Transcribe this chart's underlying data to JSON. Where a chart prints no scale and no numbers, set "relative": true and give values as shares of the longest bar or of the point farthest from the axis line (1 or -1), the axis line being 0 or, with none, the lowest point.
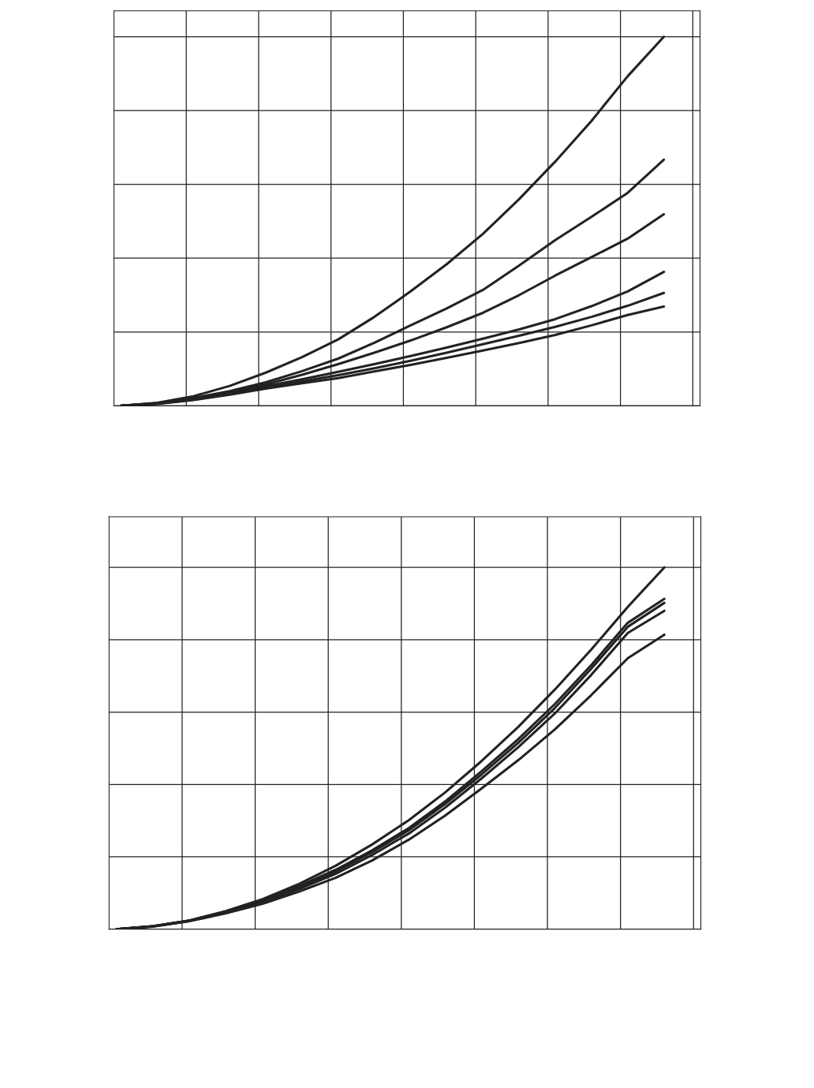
{
  "chart_data": [
    {
      "type": "line",
      "relative": true,
      "grid": true,
      "marker": "none",
      "line_style": "solid",
      "categories": [
        null,
        null,
        null,
        null,
        null,
        null,
        null,
        null,
        null,
        null,
        null,
        null,
        null,
        null,
        null,
        null
      ],
      "series": [
        {
          "color": "#222222",
          "values": [
            0,
            0.008,
            0.026,
            0.054,
            0.09,
            0.132,
            0.18,
            0.241,
            0.31,
            0.384,
            0.466,
            0.56,
            0.662,
            0.772,
            0.893,
            1
          ]
        },
        {
          "color": "#222222",
          "values": [
            0,
            0.007,
            0.021,
            0.04,
            0.064,
            0.094,
            0.128,
            0.171,
            0.218,
            0.264,
            0.314,
            0.38,
            0.449,
            0.512,
            0.577,
            0.667
          ]
        },
        {
          "color": "#222222",
          "values": [
            0,
            0.006,
            0.019,
            0.036,
            0.058,
            0.084,
            0.113,
            0.144,
            0.177,
            0.213,
            0.252,
            0.3,
            0.353,
            0.403,
            0.453,
            0.519
          ]
        },
        {
          "color": "#222222",
          "values": [
            0,
            0.006,
            0.017,
            0.034,
            0.053,
            0.072,
            0.092,
            0.113,
            0.135,
            0.158,
            0.182,
            0.207,
            0.235,
            0.27,
            0.31,
            0.363
          ]
        },
        {
          "color": "#222222",
          "values": [
            0,
            0.006,
            0.017,
            0.032,
            0.049,
            0.066,
            0.083,
            0.102,
            0.122,
            0.144,
            0.167,
            0.19,
            0.214,
            0.241,
            0.271,
            0.306
          ]
        },
        {
          "color": "#222222",
          "values": [
            0,
            0.005,
            0.016,
            0.03,
            0.047,
            0.061,
            0.075,
            0.093,
            0.111,
            0.13,
            0.15,
            0.17,
            0.192,
            0.218,
            0.246,
            0.269
          ]
        }
      ]
    },
    {
      "type": "line",
      "relative": true,
      "grid": true,
      "marker": "none",
      "line_style": "solid",
      "categories": [
        null,
        null,
        null,
        null,
        null,
        null,
        null,
        null,
        null,
        null,
        null,
        null,
        null,
        null,
        null,
        null
      ],
      "series": [
        {
          "color": "#222222",
          "values": [
            0,
            0.008,
            0.024,
            0.05,
            0.083,
            0.125,
            0.175,
            0.234,
            0.301,
            0.378,
            0.465,
            0.559,
            0.662,
            0.773,
            0.891,
            1
          ]
        },
        {
          "color": "#222222",
          "values": [
            0,
            0.008,
            0.024,
            0.048,
            0.079,
            0.119,
            0.164,
            0.218,
            0.279,
            0.353,
            0.437,
            0.525,
            0.622,
            0.73,
            0.847,
            0.913
          ]
        },
        {
          "color": "#222222",
          "values": [
            0,
            0.008,
            0.023,
            0.047,
            0.076,
            0.115,
            0.159,
            0.213,
            0.273,
            0.346,
            0.428,
            0.515,
            0.611,
            0.72,
            0.836,
            0.902
          ]
        },
        {
          "color": "#222222",
          "values": [
            0,
            0.008,
            0.023,
            0.046,
            0.074,
            0.111,
            0.153,
            0.205,
            0.264,
            0.336,
            0.417,
            0.503,
            0.596,
            0.703,
            0.819,
            0.88
          ]
        },
        {
          "color": "#222222",
          "values": [
            0,
            0.007,
            0.022,
            0.044,
            0.07,
            0.104,
            0.142,
            0.19,
            0.247,
            0.314,
            0.389,
            0.467,
            0.552,
            0.647,
            0.749,
            0.814
          ]
        }
      ]
    }
  ]
}
